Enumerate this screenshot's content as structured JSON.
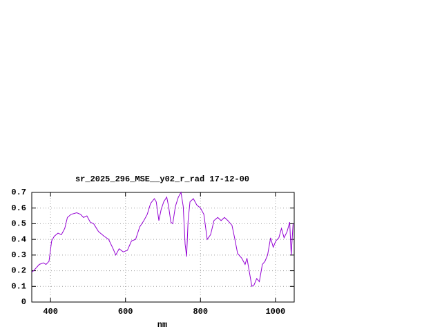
{
  "chart_data": {
    "type": "line",
    "title": "sr_2025_296_MSE__y02_r_rad 17-12-00",
    "x_label": "nm",
    "x": [
      350,
      355,
      370,
      381,
      388,
      396,
      403,
      410,
      420,
      429,
      438,
      445,
      455,
      470,
      480,
      488,
      497,
      506,
      515,
      528,
      543,
      555,
      567,
      574,
      583,
      594,
      605,
      616,
      627,
      638,
      649,
      658,
      667,
      677,
      682,
      689,
      695,
      702,
      710,
      715,
      721,
      726,
      733,
      741,
      748,
      754,
      759,
      763,
      767,
      772,
      781,
      790,
      800,
      809,
      818,
      827,
      836,
      846,
      855,
      864,
      873,
      884,
      891,
      899,
      910,
      919,
      924,
      932,
      937,
      943,
      950,
      957,
      965,
      972,
      979,
      987,
      994,
      1001,
      1009,
      1016,
      1023,
      1031,
      1038,
      1042,
      1047
    ],
    "series": [
      {
        "name": "sr_2025_296_MSE__y02_r_rad",
        "color": "#9400d3",
        "values": [
          0.19,
          0.2,
          0.24,
          0.25,
          0.24,
          0.26,
          0.39,
          0.42,
          0.44,
          0.43,
          0.47,
          0.54,
          0.56,
          0.57,
          0.56,
          0.54,
          0.55,
          0.51,
          0.5,
          0.45,
          0.42,
          0.4,
          0.34,
          0.3,
          0.34,
          0.32,
          0.33,
          0.39,
          0.4,
          0.48,
          0.52,
          0.56,
          0.63,
          0.66,
          0.64,
          0.52,
          0.59,
          0.64,
          0.67,
          0.61,
          0.51,
          0.5,
          0.61,
          0.67,
          0.7,
          0.61,
          0.37,
          0.29,
          0.52,
          0.64,
          0.66,
          0.62,
          0.6,
          0.56,
          0.4,
          0.43,
          0.52,
          0.54,
          0.52,
          0.54,
          0.52,
          0.49,
          0.41,
          0.31,
          0.28,
          0.24,
          0.28,
          0.17,
          0.1,
          0.11,
          0.15,
          0.13,
          0.24,
          0.26,
          0.3,
          0.41,
          0.35,
          0.39,
          0.41,
          0.47,
          0.41,
          0.45,
          0.51,
          0.3,
          0.5
        ]
      }
    ],
    "xlim": [
      350,
      1050
    ],
    "ylim": [
      0,
      0.7
    ],
    "xticks": [
      400,
      600,
      800,
      1000
    ],
    "yticks": [
      0,
      0.1,
      0.2,
      0.3,
      0.4,
      0.5,
      0.6,
      0.7
    ],
    "grid": true
  }
}
